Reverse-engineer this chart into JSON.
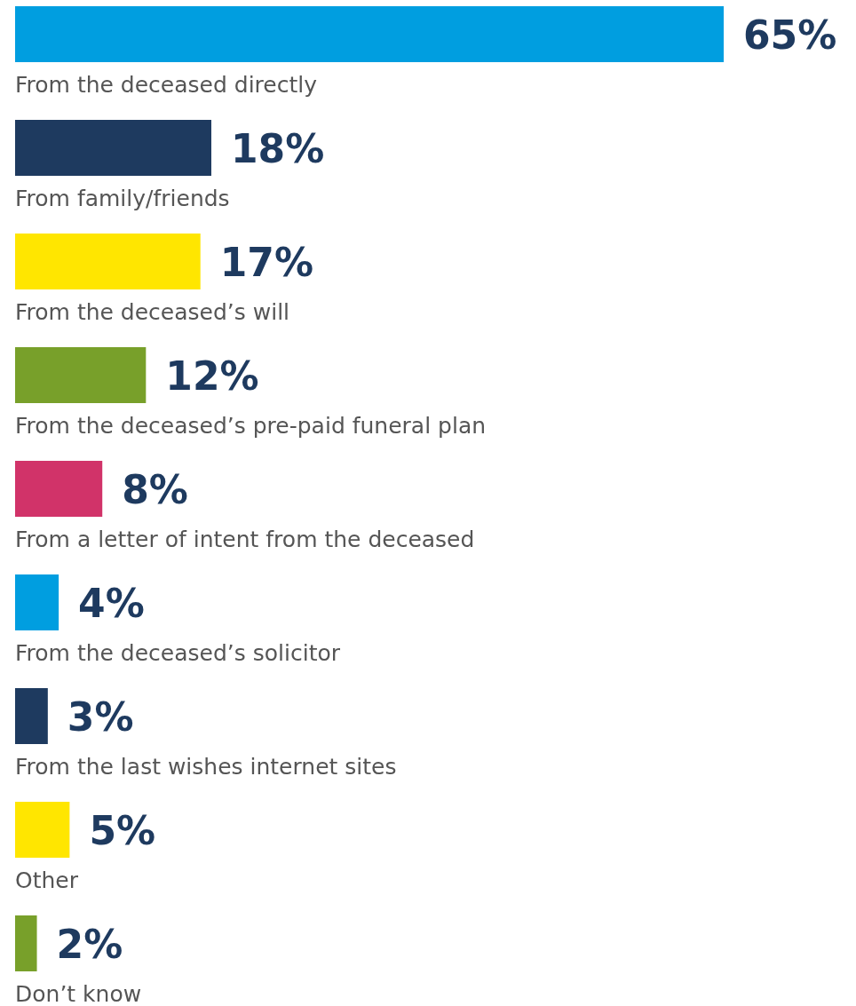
{
  "chart_data": {
    "type": "bar",
    "orientation": "horizontal",
    "categories": [
      "From the deceased directly",
      "From family/friends",
      "From the deceased’s will",
      "From the deceased’s pre-paid funeral plan",
      "From a letter of intent from the deceased",
      "From the deceased’s solicitor",
      "From the last wishes internet sites",
      "Other",
      "Don’t know"
    ],
    "values": [
      65,
      18,
      17,
      12,
      8,
      4,
      3,
      5,
      2
    ],
    "colors": [
      "#009ee0",
      "#1e3a5f",
      "#ffe600",
      "#78a02a",
      "#d13369",
      "#009ee0",
      "#1e3a5f",
      "#ffe600",
      "#78a02a"
    ],
    "value_labels": [
      "65%",
      "18%",
      "17%",
      "12%",
      "8%",
      "4%",
      "3%",
      "5%",
      "2%"
    ]
  }
}
